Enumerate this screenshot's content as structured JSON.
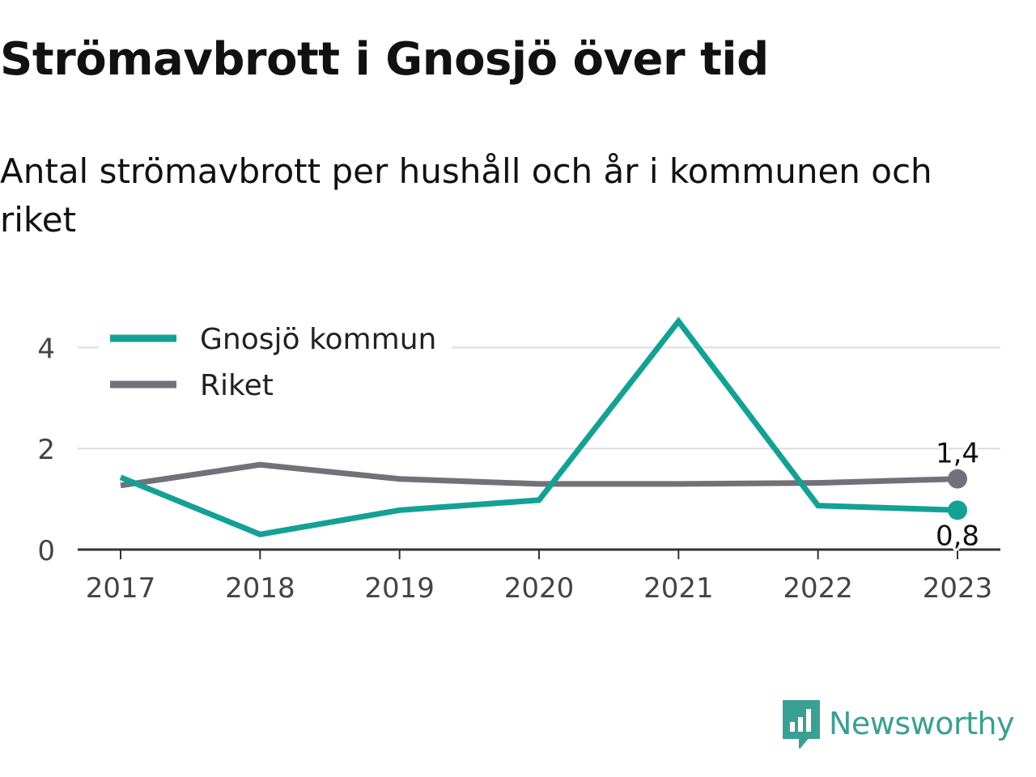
{
  "header": {
    "title": "Strömavbrott i Gnosjö över tid",
    "subtitle": "Antal strömavbrott per hushåll och år i kommunen och riket"
  },
  "chart_data": {
    "type": "line",
    "x": [
      "2017",
      "2018",
      "2019",
      "2020",
      "2021",
      "2022",
      "2023"
    ],
    "ylim": [
      0,
      4.6
    ],
    "yticks": [
      "0",
      "2",
      "4"
    ],
    "grid": true,
    "legend_position": "top-left",
    "series": [
      {
        "name": "Gnosjö kommun",
        "color": "#14a195",
        "values": [
          1.43,
          0.3,
          0.78,
          0.98,
          4.52,
          0.87,
          0.78
        ]
      },
      {
        "name": "Riket",
        "color": "#727079",
        "values": [
          1.27,
          1.68,
          1.4,
          1.3,
          1.3,
          1.32,
          1.4
        ]
      }
    ],
    "end_labels": [
      {
        "series": "Riket",
        "text": "1,4"
      },
      {
        "series": "Gnosjö kommun",
        "text": "0,8"
      }
    ]
  },
  "branding": {
    "name": "Newsworthy",
    "icon": "newsworthy-logo-icon",
    "color": "#3aa093"
  }
}
